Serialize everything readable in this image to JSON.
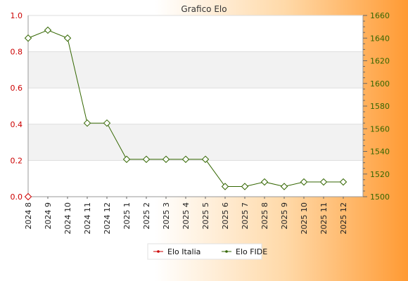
{
  "chart_data": {
    "type": "line",
    "title": "Grafico Elo",
    "categories": [
      "2024 8",
      "2024 9",
      "2024 10",
      "2024 11",
      "2024 12",
      "2025 1",
      "2025 2",
      "2025 3",
      "2025 4",
      "2025 5",
      "2025 6",
      "2025 7",
      "2025 8",
      "2025 9",
      "2025 10",
      "2025 11",
      "2025 12"
    ],
    "left_axis": {
      "ylim": [
        0,
        1.0
      ],
      "ticks": [
        "0.0",
        "0.2",
        "0.4",
        "0.6",
        "0.8",
        "1.0"
      ],
      "color": "#cc0000"
    },
    "right_axis": {
      "ylim": [
        1500,
        1660
      ],
      "ticks": [
        "1500",
        "1520",
        "1540",
        "1560",
        "1580",
        "1600",
        "1620",
        "1640",
        "1660"
      ],
      "color": "#336600"
    },
    "series": [
      {
        "name": "Elo Italia",
        "axis": "left",
        "color": "#cc0000",
        "values": [
          0,
          null,
          null,
          null,
          null,
          null,
          null,
          null,
          null,
          null,
          null,
          null,
          null,
          null,
          null,
          null,
          null
        ]
      },
      {
        "name": "Elo FIDE",
        "axis": "right",
        "color": "#336600",
        "values": [
          1640,
          1647,
          1640,
          1565,
          1565,
          1533,
          1533,
          1533,
          1533,
          1533,
          1509,
          1509,
          1513,
          1509,
          1513,
          1513,
          1513
        ]
      }
    ],
    "grid": true,
    "legend": "bottom-center"
  }
}
